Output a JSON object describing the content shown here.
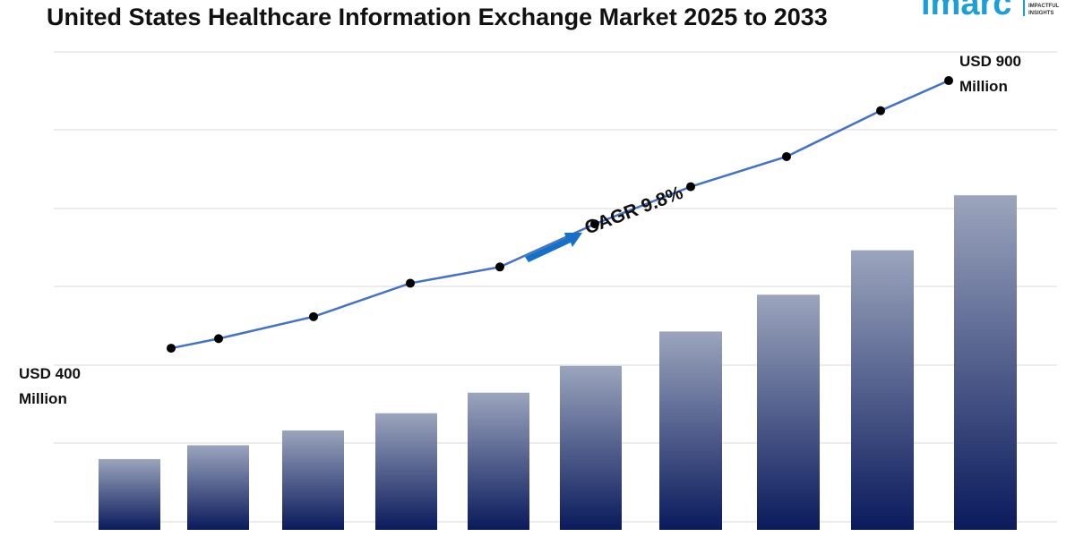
{
  "header": {
    "title": "United States Healthcare Information Exchange Market 2025 to 2033"
  },
  "logo": {
    "brand": "imarc",
    "tagline_line1": "IMPACTFUL",
    "tagline_line2": "INSIGHTS",
    "color": "#1a9fd9"
  },
  "chart_data": {
    "type": "bar",
    "title": "United States Healthcare Information Exchange Market 2025 to 2033",
    "categories": [
      "",
      "",
      "",
      "",
      "",
      "",
      "",
      "",
      "",
      ""
    ],
    "values": [
      148,
      177,
      208,
      244,
      287,
      343,
      415,
      492,
      585,
      700
    ],
    "trend_values": [
      380,
      400,
      446,
      516,
      550,
      640,
      718,
      781,
      877,
      940
    ],
    "ylim": [
      0,
      1000
    ],
    "grid": true,
    "annotations": {
      "start_line1": "USD 400",
      "start_line2": "Million",
      "end_line1": "USD 900",
      "end_line2": "Million",
      "cagr": "CAGR 9.8%"
    },
    "colors": {
      "bar_top": "#9ba5bd",
      "bar_bottom": "#0a1a5c",
      "line": "#4472c4",
      "marker": "#000000",
      "arrow": "#1570c8",
      "grid": "#d9d9d9"
    }
  }
}
